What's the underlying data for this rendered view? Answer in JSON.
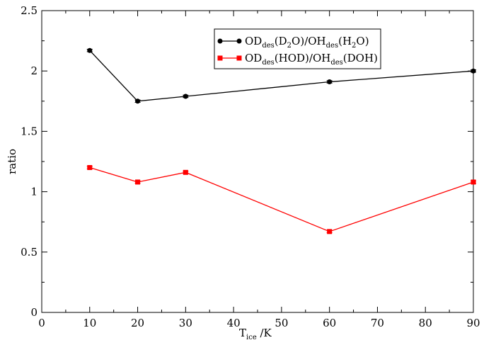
{
  "chart_data": {
    "type": "line",
    "x": [
      10,
      20,
      30,
      60,
      90
    ],
    "series": [
      {
        "name": "OD_des(D_2O)/OH_des(H_2O)",
        "values": [
          2.17,
          1.75,
          1.79,
          1.91,
          2.0
        ],
        "errors": [
          0.01,
          0.01,
          0.01,
          0.01,
          0.01
        ],
        "color": "#000000",
        "marker": "circle"
      },
      {
        "name": "OD_des(HOD)/OH_des(DOH)",
        "values": [
          1.2,
          1.08,
          1.16,
          0.67,
          1.08
        ],
        "errors": [
          0.01,
          0.01,
          0.01,
          0.01,
          0.01
        ],
        "color": "#ff0000",
        "marker": "square"
      }
    ],
    "xlabel": "T_ice /K",
    "ylabel": "ratio",
    "xlim": [
      0,
      90
    ],
    "ylim": [
      0,
      2.5
    ],
    "xticks": [
      "0",
      "10",
      "20",
      "30",
      "40",
      "50",
      "60",
      "70",
      "80",
      "90"
    ],
    "yticks": [
      "0",
      "0.5",
      "1",
      "1.5",
      "2",
      "2.5"
    ],
    "grid": false,
    "legend_position": "top-right"
  },
  "legend": {
    "s1_pre": "OD",
    "s1_sub1": "des",
    "s1_mid1": "(D",
    "s1_sub2": "2",
    "s1_mid2": "O)/OH",
    "s1_sub3": "des",
    "s1_mid3": "(H",
    "s1_sub4": "2",
    "s1_post": "O)",
    "s2_pre": "OD",
    "s2_sub1": "des",
    "s2_mid1": "(HOD)/OH",
    "s2_sub2": "des",
    "s2_post": "(DOH)"
  },
  "axes": {
    "xlabel_main": "T",
    "xlabel_sub": "ice",
    "xlabel_post": " /K",
    "ylabel": "ratio"
  }
}
